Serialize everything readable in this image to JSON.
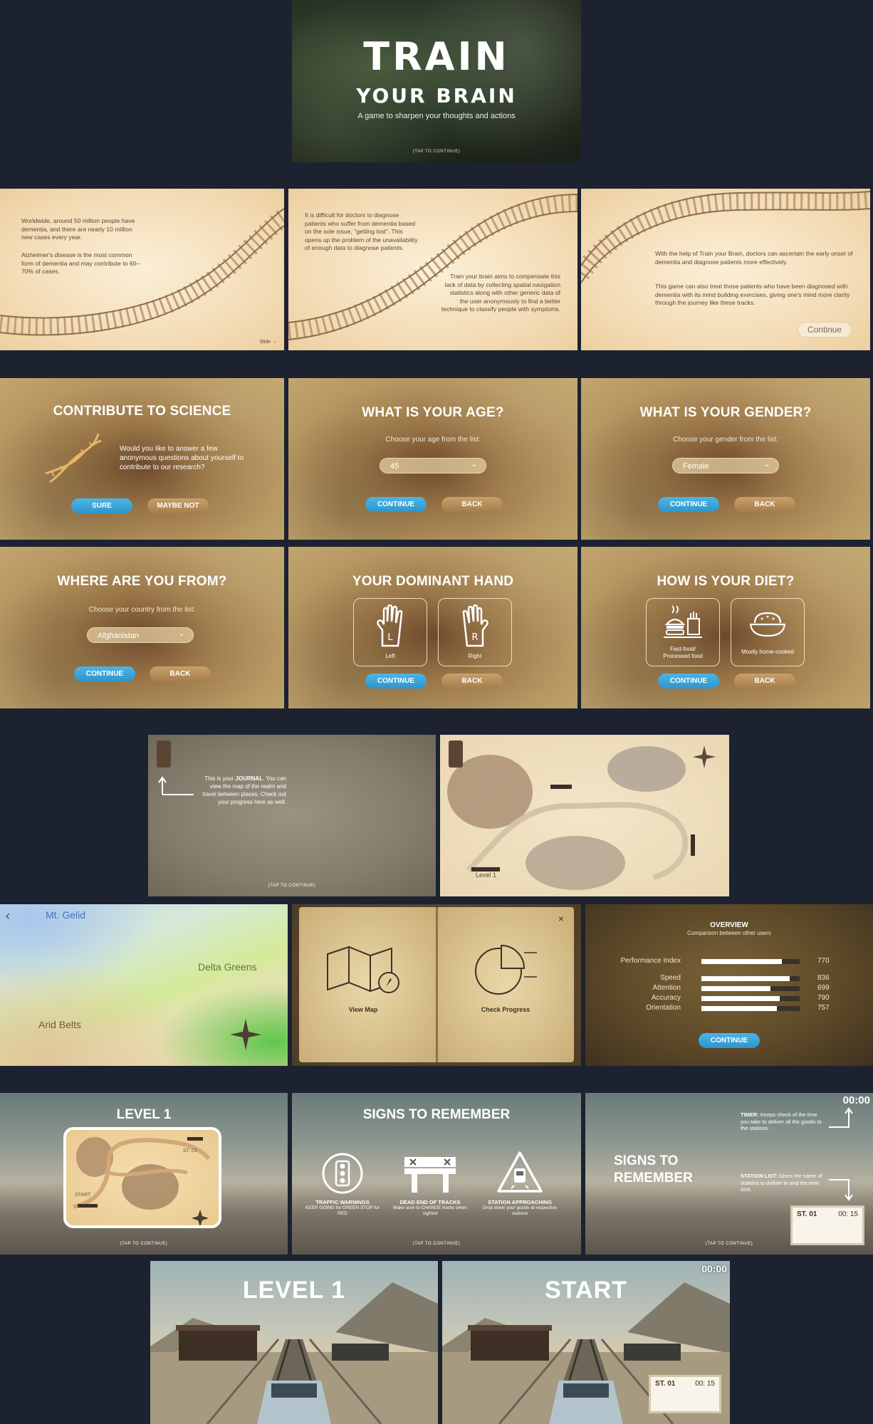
{
  "hero": {
    "title_line1": "TRAIN",
    "title_line2": "YOUR BRAIN",
    "tagline": "A game to sharpen your thoughts and actions",
    "tap": "(TAP TO CONTINUE)"
  },
  "intro": {
    "slide1": {
      "p1": "Worldwide, around 50 million people have dementia, and there are nearly 10 million new cases every year.",
      "p2": "Alzheimer's disease is the most common form of dementia and may contribute to 60–70% of cases.",
      "nav": "Slide →"
    },
    "slide2": {
      "p1": "It is difficult for doctors to diagnose patients who suffer from dementia based on the sole issue, \"getting lost\". This opens up the problem of the unavailability of enough data to diagnose patients.",
      "p2": "Train your brain aims to compensate this lack of data by collecting spatial navigation statistics along with other generic data of the user anonymously to find a better technique to classify people with symptoms."
    },
    "slide3": {
      "p1": "With the help of Train your Brain, doctors can ascertain the early onset of dementia and diagnose patients more effectively.",
      "p2": "This game can also treat those patients who have been diagnosed with dementia with its mind building exercises, giving one's mind more clarity through the journey like these tracks.",
      "continue": "Continue"
    }
  },
  "science": {
    "title": "CONTRIBUTE TO SCIENCE",
    "text": "Would you like to answer a few anonymous questions about yourself to contribute to our research?",
    "sure": "SURE",
    "maybe_not": "MAYBE NOT"
  },
  "age": {
    "title": "WHAT IS YOUR AGE?",
    "sub": "Choose your age from the list:",
    "value": "45",
    "continue": "CONTINUE",
    "back": "BACK"
  },
  "gender": {
    "title": "WHAT IS YOUR GENDER?",
    "sub": "Choose your gender from the list:",
    "value": "Female",
    "continue": "CONTINUE",
    "back": "BACK"
  },
  "country": {
    "title": "WHERE ARE YOU FROM?",
    "sub": "Choose your country from the list:",
    "value": "Afghanistan",
    "continue": "CONTINUE",
    "back": "BACK"
  },
  "hand": {
    "title": "YOUR DOMINANT HAND",
    "left": "Left",
    "right": "Right",
    "left_letter": "L",
    "right_letter": "R",
    "continue": "CONTINUE",
    "back": "BACK"
  },
  "diet": {
    "title": "HOW IS YOUR DIET?",
    "opt1": "Fast-food/\nProcessed food",
    "opt2": "Mostly home-cooked",
    "continue": "CONTINUE",
    "back": "BACK"
  },
  "journal": {
    "text_pre": "This is your ",
    "text_bold": "JOURNAL",
    "text_post": ". You can view the map of the realm and travel between places. Check out your progress here as well.",
    "tap": "(TAP TO CONTINUE)"
  },
  "map": {
    "level": "Level 1"
  },
  "realm": {
    "back": "‹",
    "north": "Mt. Gelid",
    "east": "Delta Greens",
    "south": "Arid Belts"
  },
  "book": {
    "view_map": "View Map",
    "check_progress": "Check Progress",
    "close": "×"
  },
  "overview": {
    "title": "OVERVIEW",
    "sub": "Comparison between other users",
    "metrics": [
      {
        "label": "Performance Index",
        "value": "770",
        "fraction": 0.82
      },
      {
        "label": "Speed",
        "value": "836",
        "fraction": 0.9
      },
      {
        "label": "Attention",
        "value": "699",
        "fraction": 0.7
      },
      {
        "label": "Accuracy",
        "value": "790",
        "fraction": 0.8
      },
      {
        "label": "Orientation",
        "value": "757",
        "fraction": 0.77
      }
    ],
    "continue": "CONTINUE"
  },
  "level1card": {
    "title": "LEVEL 1",
    "station": "ST. 01",
    "start": "START",
    "tap": "(TAP TO CONTINUE)"
  },
  "signs": {
    "title": "SIGNS TO REMEMBER",
    "s1_title": "TRAFFIC WARNINGS",
    "s1_desc": "KEEP GOING for GREEN STOP for RED",
    "s2_title": "DEAD END OF TRACKS",
    "s2_desc": "Make sure to CHANGE tracks when sighted",
    "s3_title": "STATION APPROACHING",
    "s3_desc": "Drop down your goods at respective stations",
    "tap": "(TAP TO CONTINUE)"
  },
  "hud": {
    "title_l1": "SIGNS TO",
    "title_l2": "REMEMBER",
    "timer": "00:00",
    "timer_help_bold": "TIMER:",
    "timer_help": " Keeps check of the time you take to deliver all the goods to the stations.",
    "station_help_bold": "STATION LIST:",
    "station_help": " Gives the name of stations to deliver to and the time limit.",
    "station": "ST. 01",
    "station_time": "00: 15",
    "tap": "(TAP TO CONTINUE)"
  },
  "game1": {
    "title": "LEVEL 1"
  },
  "game2": {
    "title": "START",
    "timer": "00:00",
    "station": "ST. 01",
    "station_time": "00: 15"
  }
}
